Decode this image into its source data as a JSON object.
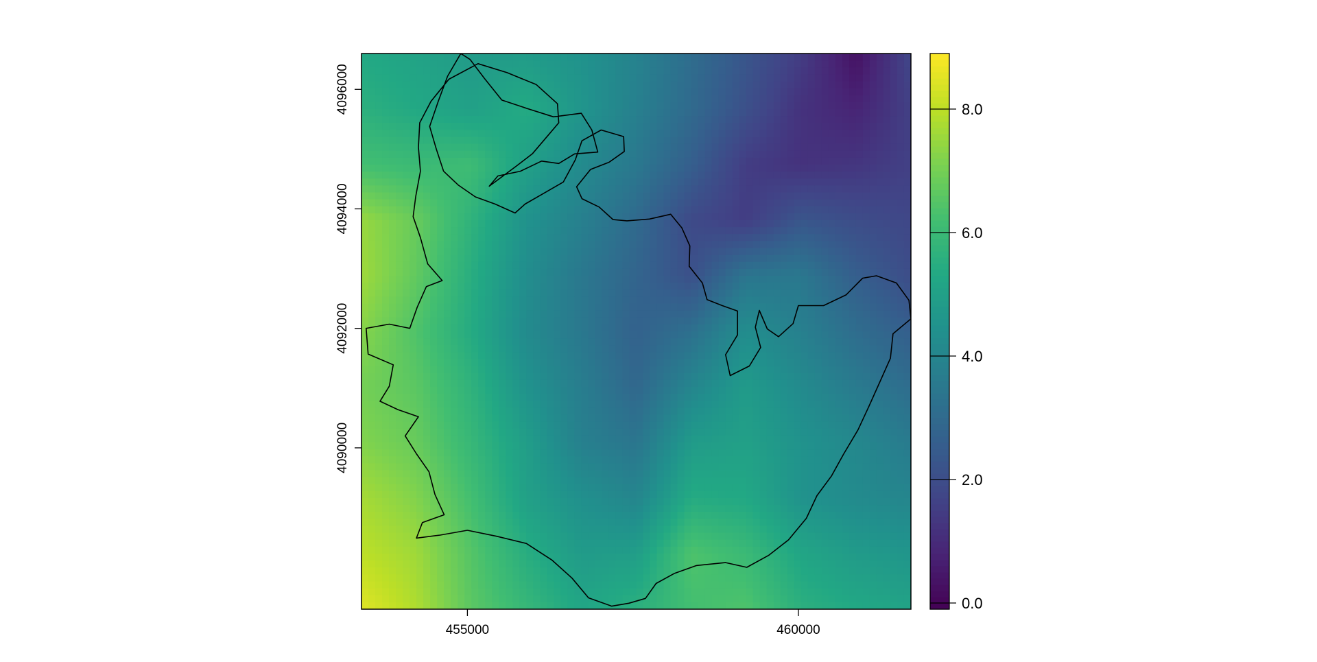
{
  "chart_data": {
    "type": "heatmap",
    "title": "",
    "xlabel": "",
    "ylabel": "",
    "xlim": [
      453400,
      461700
    ],
    "ylim": [
      4087300,
      4096600
    ],
    "x_ticks": [
      {
        "value": 455000,
        "label": "455000"
      },
      {
        "value": 460000,
        "label": "460000"
      }
    ],
    "y_ticks": [
      {
        "value": 4090000,
        "label": "4090000"
      },
      {
        "value": 4092000,
        "label": "4092000"
      },
      {
        "value": 4094000,
        "label": "4094000"
      },
      {
        "value": 4096000,
        "label": "4096000"
      }
    ],
    "colorbar": {
      "colormap": "viridis",
      "range": [
        -0.1,
        8.9
      ],
      "ticks": [
        {
          "value": 0.0,
          "label": "0.0"
        },
        {
          "value": 2.0,
          "label": "2.0"
        },
        {
          "value": 4.0,
          "label": "4.0"
        },
        {
          "value": 6.0,
          "label": "6.0"
        },
        {
          "value": 8.0,
          "label": "8.0"
        }
      ]
    },
    "surface_grid": {
      "x": [
        453400,
        454230,
        455060,
        455890,
        456720,
        457550,
        458380,
        459210,
        460040,
        460870,
        461700
      ],
      "y": [
        4087300,
        4088230,
        4089160,
        4090090,
        4091020,
        4091950,
        4092880,
        4093810,
        4094740,
        4095670,
        4096600
      ],
      "values": [
        [
          8.5,
          7.8,
          6.6,
          5.9,
          5.2,
          5.6,
          6.2,
          6.4,
          5.6,
          5.3,
          5.1
        ],
        [
          8.0,
          7.6,
          6.5,
          5.5,
          4.8,
          4.9,
          6.4,
          6.0,
          5.2,
          4.8,
          4.6
        ],
        [
          7.7,
          7.2,
          6.2,
          5.0,
          4.4,
          4.0,
          5.4,
          5.3,
          4.5,
          4.2,
          4.0
        ],
        [
          7.2,
          6.8,
          5.9,
          4.9,
          3.8,
          3.4,
          4.8,
          5.0,
          4.5,
          4.1,
          3.6
        ],
        [
          7.0,
          6.6,
          5.7,
          4.5,
          3.7,
          2.9,
          4.0,
          4.8,
          4.2,
          3.6,
          3.1
        ],
        [
          7.3,
          6.4,
          5.4,
          4.2,
          3.5,
          2.7,
          3.2,
          4.3,
          3.8,
          3.1,
          2.6
        ],
        [
          7.6,
          6.7,
          5.5,
          4.3,
          3.5,
          2.8,
          2.1,
          3.4,
          3.5,
          2.6,
          2.0
        ],
        [
          7.5,
          6.8,
          5.7,
          4.5,
          3.8,
          3.0,
          1.9,
          1.5,
          2.3,
          2.0,
          1.8
        ],
        [
          6.2,
          6.0,
          6.1,
          5.0,
          4.2,
          3.5,
          2.6,
          1.5,
          1.2,
          1.3,
          1.6
        ],
        [
          5.6,
          5.3,
          5.0,
          5.4,
          4.6,
          3.8,
          3.0,
          2.1,
          1.2,
          0.8,
          1.6
        ],
        [
          5.3,
          5.1,
          4.8,
          4.8,
          4.5,
          3.9,
          3.1,
          2.3,
          1.5,
          0.3,
          1.8
        ]
      ]
    },
    "outline": {
      "name": "",
      "color": "#000000",
      "points": [
        [
          454900,
          4096600
        ],
        [
          455040,
          4096500
        ],
        [
          455260,
          4096180
        ],
        [
          455520,
          4095820
        ],
        [
          455900,
          4095680
        ],
        [
          456300,
          4095540
        ],
        [
          456720,
          4095600
        ],
        [
          456880,
          4095320
        ],
        [
          456970,
          4094950
        ],
        [
          456620,
          4094920
        ],
        [
          456380,
          4094760
        ],
        [
          456120,
          4094800
        ],
        [
          455800,
          4094630
        ],
        [
          455460,
          4094550
        ],
        [
          455330,
          4094380
        ],
        [
          455720,
          4094700
        ],
        [
          455980,
          4094920
        ],
        [
          456180,
          4095180
        ],
        [
          456380,
          4095440
        ],
        [
          456360,
          4095760
        ],
        [
          456040,
          4096080
        ],
        [
          455600,
          4096280
        ],
        [
          455160,
          4096430
        ],
        [
          454720,
          4096170
        ],
        [
          454450,
          4095800
        ],
        [
          454280,
          4095440
        ],
        [
          454260,
          4095030
        ],
        [
          454290,
          4094630
        ],
        [
          454220,
          4094210
        ],
        [
          454180,
          4093870
        ],
        [
          454290,
          4093520
        ],
        [
          454400,
          4093080
        ],
        [
          454620,
          4092800
        ],
        [
          454380,
          4092700
        ],
        [
          454240,
          4092350
        ],
        [
          454130,
          4092000
        ],
        [
          453820,
          4092070
        ],
        [
          453470,
          4092000
        ],
        [
          453500,
          4091570
        ],
        [
          453880,
          4091390
        ],
        [
          453820,
          4091030
        ],
        [
          453680,
          4090780
        ],
        [
          453950,
          4090640
        ],
        [
          454260,
          4090520
        ],
        [
          454060,
          4090200
        ],
        [
          454230,
          4089900
        ],
        [
          454420,
          4089600
        ],
        [
          454510,
          4089220
        ],
        [
          454650,
          4088880
        ],
        [
          454320,
          4088750
        ],
        [
          454230,
          4088490
        ],
        [
          454590,
          4088540
        ],
        [
          455000,
          4088620
        ],
        [
          455440,
          4088520
        ],
        [
          455890,
          4088400
        ],
        [
          456280,
          4088120
        ],
        [
          456580,
          4087820
        ],
        [
          456830,
          4087490
        ],
        [
          457180,
          4087350
        ],
        [
          457440,
          4087400
        ],
        [
          457690,
          4087480
        ],
        [
          457850,
          4087730
        ],
        [
          458130,
          4087900
        ],
        [
          458460,
          4088030
        ],
        [
          458900,
          4088080
        ],
        [
          459220,
          4088000
        ],
        [
          459550,
          4088200
        ],
        [
          459850,
          4088460
        ],
        [
          460120,
          4088820
        ],
        [
          460280,
          4089200
        ],
        [
          460500,
          4089530
        ],
        [
          460680,
          4089890
        ],
        [
          460900,
          4090300
        ],
        [
          461060,
          4090680
        ],
        [
          461230,
          4091100
        ],
        [
          461390,
          4091500
        ],
        [
          461430,
          4091910
        ],
        [
          461700,
          4092160
        ],
        [
          461670,
          4092470
        ],
        [
          461480,
          4092760
        ],
        [
          461180,
          4092880
        ],
        [
          460970,
          4092840
        ],
        [
          460720,
          4092560
        ],
        [
          460380,
          4092380
        ],
        [
          460000,
          4092380
        ],
        [
          459920,
          4092080
        ],
        [
          459700,
          4091860
        ],
        [
          459530,
          4091990
        ],
        [
          459410,
          4092300
        ],
        [
          459350,
          4092020
        ],
        [
          459430,
          4091680
        ],
        [
          459260,
          4091370
        ],
        [
          458970,
          4091210
        ],
        [
          458900,
          4091560
        ],
        [
          459080,
          4091890
        ],
        [
          459080,
          4092290
        ],
        [
          458850,
          4092380
        ],
        [
          458620,
          4092480
        ],
        [
          458550,
          4092760
        ],
        [
          458350,
          4093040
        ],
        [
          458360,
          4093380
        ],
        [
          458240,
          4093680
        ],
        [
          458070,
          4093910
        ],
        [
          457750,
          4093830
        ],
        [
          457410,
          4093800
        ],
        [
          457200,
          4093820
        ],
        [
          456990,
          4094030
        ],
        [
          456730,
          4094170
        ],
        [
          456650,
          4094370
        ],
        [
          456860,
          4094660
        ],
        [
          457140,
          4094780
        ],
        [
          457370,
          4094960
        ],
        [
          457360,
          4095210
        ],
        [
          457020,
          4095320
        ],
        [
          456730,
          4095140
        ],
        [
          456630,
          4094820
        ],
        [
          456450,
          4094450
        ],
        [
          456090,
          4094220
        ],
        [
          455870,
          4094080
        ],
        [
          455720,
          4093930
        ],
        [
          455420,
          4094080
        ],
        [
          455120,
          4094200
        ],
        [
          454860,
          4094400
        ],
        [
          454640,
          4094630
        ],
        [
          454530,
          4095000
        ],
        [
          454430,
          4095380
        ],
        [
          454560,
          4095800
        ],
        [
          454700,
          4096220
        ],
        [
          454900,
          4096600
        ]
      ]
    }
  }
}
